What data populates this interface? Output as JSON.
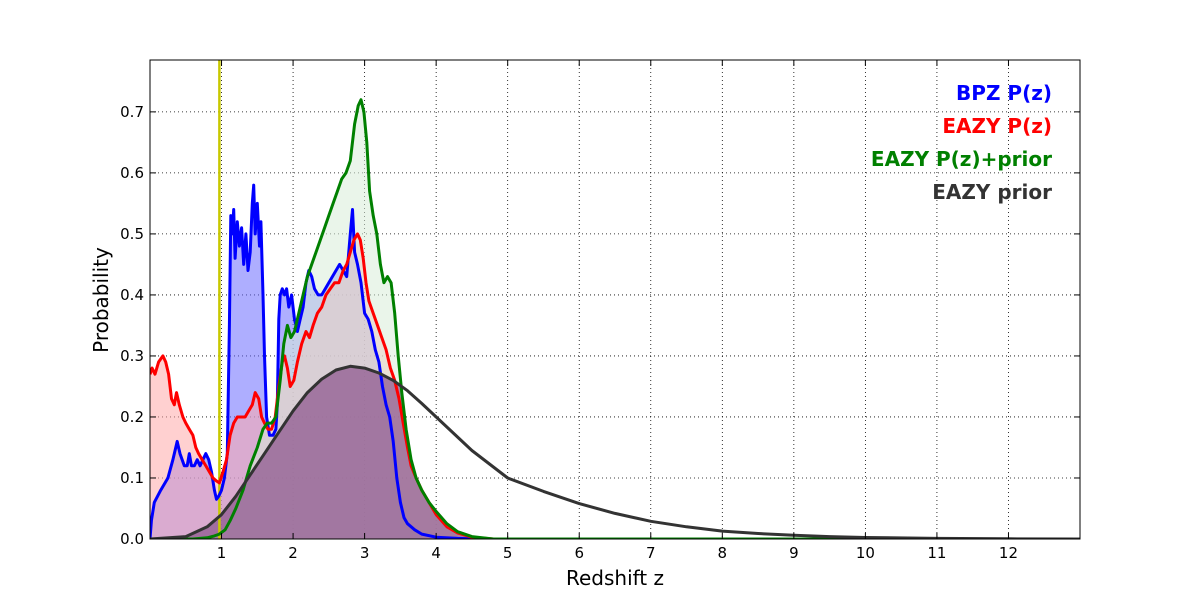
{
  "chart_data": {
    "type": "area",
    "title": "",
    "xlabel": "Redshift z",
    "ylabel": "Probability",
    "xlim": [
      0,
      13
    ],
    "ylim": [
      0,
      0.785
    ],
    "grid": true,
    "grid_style": "dotted",
    "legend_position": "top-right",
    "x_ticks": [
      1,
      2,
      3,
      4,
      5,
      6,
      7,
      8,
      9,
      10,
      11,
      12
    ],
    "x_tick_labels": [
      "1",
      "2",
      "3",
      "4",
      "5",
      "6",
      "7",
      "8",
      "9",
      "10",
      "11",
      "12"
    ],
    "y_ticks": [
      0.0,
      0.1,
      0.2,
      0.3,
      0.4,
      0.5,
      0.6,
      0.7
    ],
    "y_tick_labels": [
      "0.0",
      "0.1",
      "0.2",
      "0.3",
      "0.4",
      "0.5",
      "0.6",
      "0.7"
    ],
    "reference_line": {
      "x": 0.97,
      "color": "#c8c800"
    },
    "series": [
      {
        "name": "BPZ P(z)",
        "color": "#0000ff",
        "fill": "#6b6bff",
        "filled": true,
        "points": [
          [
            0,
            0.0
          ],
          [
            0.02,
            0.03
          ],
          [
            0.06,
            0.06
          ],
          [
            0.15,
            0.08
          ],
          [
            0.25,
            0.1
          ],
          [
            0.32,
            0.13
          ],
          [
            0.38,
            0.16
          ],
          [
            0.42,
            0.14
          ],
          [
            0.48,
            0.12
          ],
          [
            0.52,
            0.12
          ],
          [
            0.55,
            0.14
          ],
          [
            0.58,
            0.12
          ],
          [
            0.62,
            0.12
          ],
          [
            0.66,
            0.13
          ],
          [
            0.7,
            0.12
          ],
          [
            0.74,
            0.13
          ],
          [
            0.78,
            0.14
          ],
          [
            0.82,
            0.13
          ],
          [
            0.86,
            0.11
          ],
          [
            0.9,
            0.08
          ],
          [
            0.93,
            0.065
          ],
          [
            0.96,
            0.07
          ],
          [
            1.0,
            0.08
          ],
          [
            1.04,
            0.1
          ],
          [
            1.08,
            0.14
          ],
          [
            1.11,
            0.35
          ],
          [
            1.13,
            0.53
          ],
          [
            1.15,
            0.5
          ],
          [
            1.17,
            0.54
          ],
          [
            1.19,
            0.46
          ],
          [
            1.22,
            0.52
          ],
          [
            1.25,
            0.48
          ],
          [
            1.28,
            0.51
          ],
          [
            1.31,
            0.45
          ],
          [
            1.34,
            0.5
          ],
          [
            1.37,
            0.44
          ],
          [
            1.4,
            0.47
          ],
          [
            1.43,
            0.55
          ],
          [
            1.45,
            0.58
          ],
          [
            1.47,
            0.5
          ],
          [
            1.5,
            0.55
          ],
          [
            1.53,
            0.48
          ],
          [
            1.55,
            0.52
          ],
          [
            1.58,
            0.4
          ],
          [
            1.6,
            0.3
          ],
          [
            1.63,
            0.2
          ],
          [
            1.67,
            0.17
          ],
          [
            1.72,
            0.17
          ],
          [
            1.76,
            0.18
          ],
          [
            1.78,
            0.22
          ],
          [
            1.8,
            0.36
          ],
          [
            1.82,
            0.4
          ],
          [
            1.85,
            0.41
          ],
          [
            1.88,
            0.4
          ],
          [
            1.91,
            0.41
          ],
          [
            1.94,
            0.38
          ],
          [
            1.98,
            0.4
          ],
          [
            2.02,
            0.36
          ],
          [
            2.06,
            0.34
          ],
          [
            2.1,
            0.36
          ],
          [
            2.14,
            0.38
          ],
          [
            2.18,
            0.42
          ],
          [
            2.22,
            0.44
          ],
          [
            2.26,
            0.43
          ],
          [
            2.3,
            0.41
          ],
          [
            2.35,
            0.4
          ],
          [
            2.4,
            0.4
          ],
          [
            2.45,
            0.41
          ],
          [
            2.5,
            0.42
          ],
          [
            2.55,
            0.43
          ],
          [
            2.6,
            0.44
          ],
          [
            2.65,
            0.45
          ],
          [
            2.7,
            0.44
          ],
          [
            2.75,
            0.43
          ],
          [
            2.8,
            0.5
          ],
          [
            2.83,
            0.54
          ],
          [
            2.86,
            0.47
          ],
          [
            2.9,
            0.45
          ],
          [
            2.95,
            0.42
          ],
          [
            3.0,
            0.37
          ],
          [
            3.05,
            0.36
          ],
          [
            3.1,
            0.34
          ],
          [
            3.15,
            0.31
          ],
          [
            3.2,
            0.29
          ],
          [
            3.25,
            0.25
          ],
          [
            3.3,
            0.22
          ],
          [
            3.35,
            0.2
          ],
          [
            3.4,
            0.16
          ],
          [
            3.45,
            0.1
          ],
          [
            3.5,
            0.06
          ],
          [
            3.55,
            0.035
          ],
          [
            3.6,
            0.025
          ],
          [
            3.7,
            0.015
          ],
          [
            3.8,
            0.008
          ],
          [
            4.0,
            0.003
          ],
          [
            4.3,
            0.001
          ],
          [
            4.6,
            0.0
          ],
          [
            13,
            0.0
          ]
        ]
      },
      {
        "name": "EAZY P(z)",
        "color": "#ff0000",
        "fill": "#ffaaaa",
        "filled": true,
        "points": [
          [
            0,
            0.27
          ],
          [
            0.03,
            0.28
          ],
          [
            0.07,
            0.27
          ],
          [
            0.12,
            0.29
          ],
          [
            0.18,
            0.3
          ],
          [
            0.22,
            0.29
          ],
          [
            0.26,
            0.27
          ],
          [
            0.3,
            0.23
          ],
          [
            0.34,
            0.22
          ],
          [
            0.37,
            0.24
          ],
          [
            0.41,
            0.22
          ],
          [
            0.46,
            0.2
          ],
          [
            0.5,
            0.19
          ],
          [
            0.55,
            0.18
          ],
          [
            0.6,
            0.17
          ],
          [
            0.64,
            0.15
          ],
          [
            0.68,
            0.14
          ],
          [
            0.73,
            0.13
          ],
          [
            0.78,
            0.12
          ],
          [
            0.83,
            0.11
          ],
          [
            0.88,
            0.1
          ],
          [
            0.93,
            0.095
          ],
          [
            0.97,
            0.092
          ],
          [
            1.02,
            0.11
          ],
          [
            1.07,
            0.13
          ],
          [
            1.12,
            0.17
          ],
          [
            1.17,
            0.19
          ],
          [
            1.22,
            0.2
          ],
          [
            1.28,
            0.2
          ],
          [
            1.33,
            0.2
          ],
          [
            1.38,
            0.21
          ],
          [
            1.43,
            0.22
          ],
          [
            1.47,
            0.24
          ],
          [
            1.52,
            0.23
          ],
          [
            1.56,
            0.2
          ],
          [
            1.6,
            0.19
          ],
          [
            1.65,
            0.18
          ],
          [
            1.7,
            0.18
          ],
          [
            1.75,
            0.2
          ],
          [
            1.8,
            0.25
          ],
          [
            1.85,
            0.29
          ],
          [
            1.88,
            0.3
          ],
          [
            1.92,
            0.28
          ],
          [
            1.96,
            0.25
          ],
          [
            2.01,
            0.26
          ],
          [
            2.06,
            0.29
          ],
          [
            2.12,
            0.32
          ],
          [
            2.18,
            0.34
          ],
          [
            2.23,
            0.33
          ],
          [
            2.28,
            0.35
          ],
          [
            2.34,
            0.37
          ],
          [
            2.4,
            0.38
          ],
          [
            2.46,
            0.4
          ],
          [
            2.52,
            0.41
          ],
          [
            2.58,
            0.42
          ],
          [
            2.64,
            0.42
          ],
          [
            2.7,
            0.44
          ],
          [
            2.75,
            0.45
          ],
          [
            2.8,
            0.47
          ],
          [
            2.85,
            0.49
          ],
          [
            2.9,
            0.5
          ],
          [
            2.94,
            0.49
          ],
          [
            2.98,
            0.46
          ],
          [
            3.02,
            0.42
          ],
          [
            3.06,
            0.39
          ],
          [
            3.12,
            0.37
          ],
          [
            3.18,
            0.35
          ],
          [
            3.24,
            0.33
          ],
          [
            3.3,
            0.31
          ],
          [
            3.36,
            0.28
          ],
          [
            3.42,
            0.26
          ],
          [
            3.48,
            0.23
          ],
          [
            3.54,
            0.19
          ],
          [
            3.6,
            0.15
          ],
          [
            3.65,
            0.12
          ],
          [
            3.72,
            0.1
          ],
          [
            3.8,
            0.08
          ],
          [
            3.9,
            0.06
          ],
          [
            4.0,
            0.04
          ],
          [
            4.15,
            0.02
          ],
          [
            4.3,
            0.01
          ],
          [
            4.5,
            0.003
          ],
          [
            4.8,
            0.0
          ],
          [
            13,
            0.0
          ]
        ]
      },
      {
        "name": "EAZY P(z)+prior",
        "color": "#008000",
        "fill": "#d8ecd8",
        "filled": true,
        "points": [
          [
            0,
            0.0
          ],
          [
            0.3,
            0.0
          ],
          [
            0.6,
            0.0
          ],
          [
            0.8,
            0.002
          ],
          [
            0.9,
            0.005
          ],
          [
            0.97,
            0.008
          ],
          [
            1.05,
            0.015
          ],
          [
            1.12,
            0.03
          ],
          [
            1.2,
            0.05
          ],
          [
            1.3,
            0.08
          ],
          [
            1.4,
            0.12
          ],
          [
            1.5,
            0.15
          ],
          [
            1.58,
            0.18
          ],
          [
            1.64,
            0.19
          ],
          [
            1.7,
            0.19
          ],
          [
            1.76,
            0.2
          ],
          [
            1.82,
            0.26
          ],
          [
            1.87,
            0.32
          ],
          [
            1.92,
            0.35
          ],
          [
            1.97,
            0.33
          ],
          [
            2.02,
            0.34
          ],
          [
            2.08,
            0.37
          ],
          [
            2.14,
            0.4
          ],
          [
            2.2,
            0.43
          ],
          [
            2.26,
            0.45
          ],
          [
            2.32,
            0.47
          ],
          [
            2.38,
            0.49
          ],
          [
            2.44,
            0.51
          ],
          [
            2.5,
            0.53
          ],
          [
            2.56,
            0.55
          ],
          [
            2.62,
            0.57
          ],
          [
            2.68,
            0.59
          ],
          [
            2.74,
            0.6
          ],
          [
            2.8,
            0.62
          ],
          [
            2.86,
            0.68
          ],
          [
            2.91,
            0.71
          ],
          [
            2.95,
            0.72
          ],
          [
            2.99,
            0.7
          ],
          [
            3.03,
            0.65
          ],
          [
            3.07,
            0.57
          ],
          [
            3.12,
            0.53
          ],
          [
            3.17,
            0.5
          ],
          [
            3.22,
            0.45
          ],
          [
            3.27,
            0.42
          ],
          [
            3.32,
            0.43
          ],
          [
            3.37,
            0.42
          ],
          [
            3.42,
            0.37
          ],
          [
            3.47,
            0.3
          ],
          [
            3.52,
            0.24
          ],
          [
            3.58,
            0.18
          ],
          [
            3.65,
            0.13
          ],
          [
            3.72,
            0.1
          ],
          [
            3.8,
            0.08
          ],
          [
            3.9,
            0.06
          ],
          [
            4.0,
            0.045
          ],
          [
            4.15,
            0.025
          ],
          [
            4.3,
            0.012
          ],
          [
            4.5,
            0.004
          ],
          [
            4.8,
            0.0
          ],
          [
            13,
            0.0
          ]
        ]
      },
      {
        "name": "EAZY prior",
        "color": "#333333",
        "fill": "#8f5a8f",
        "filled": false,
        "points": [
          [
            0,
            0.0
          ],
          [
            0.5,
            0.004
          ],
          [
            0.8,
            0.02
          ],
          [
            1.0,
            0.04
          ],
          [
            1.2,
            0.07
          ],
          [
            1.4,
            0.105
          ],
          [
            1.6,
            0.14
          ],
          [
            1.8,
            0.175
          ],
          [
            2.0,
            0.21
          ],
          [
            2.2,
            0.24
          ],
          [
            2.4,
            0.262
          ],
          [
            2.6,
            0.277
          ],
          [
            2.8,
            0.283
          ],
          [
            3.0,
            0.28
          ],
          [
            3.2,
            0.272
          ],
          [
            3.4,
            0.26
          ],
          [
            3.6,
            0.243
          ],
          [
            3.8,
            0.222
          ],
          [
            4.0,
            0.2
          ],
          [
            4.5,
            0.145
          ],
          [
            5.0,
            0.1
          ],
          [
            5.5,
            0.078
          ],
          [
            6.0,
            0.058
          ],
          [
            6.5,
            0.042
          ],
          [
            7.0,
            0.029
          ],
          [
            7.5,
            0.02
          ],
          [
            8.0,
            0.013
          ],
          [
            8.5,
            0.009
          ],
          [
            9.0,
            0.006
          ],
          [
            9.5,
            0.004
          ],
          [
            10.0,
            0.0025
          ],
          [
            11.0,
            0.001
          ],
          [
            12.0,
            0.0003
          ],
          [
            13.0,
            0.0
          ]
        ]
      }
    ],
    "overlap_fill": "#8f5a8f"
  }
}
